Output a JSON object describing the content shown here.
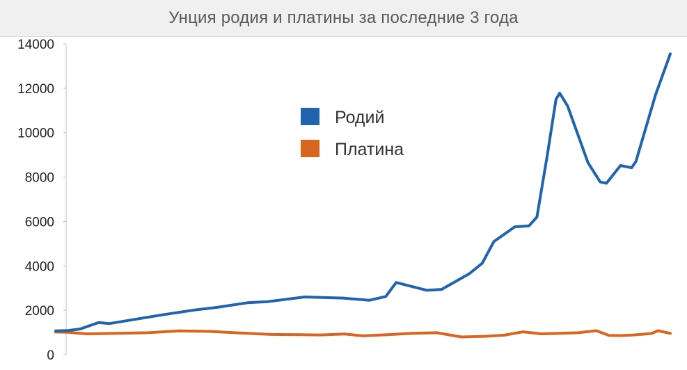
{
  "chart_data": {
    "type": "line",
    "title": "Унция родия и платины за последние 3 года",
    "xlabel": "",
    "ylabel": "",
    "ylim": [
      0,
      14000
    ],
    "yticks": [
      0,
      2000,
      4000,
      6000,
      8000,
      10000,
      12000,
      14000
    ],
    "grid": false,
    "legend_position": "center",
    "x": [
      0,
      1,
      2,
      3,
      4,
      5,
      6,
      7,
      8,
      9,
      10,
      11,
      12,
      13,
      14,
      15,
      16,
      17,
      18,
      19,
      20,
      21,
      22,
      23,
      24,
      25,
      26,
      27,
      28,
      29,
      30,
      31,
      32,
      33,
      34,
      35,
      36,
      37,
      38,
      39,
      40,
      41,
      42,
      43,
      44,
      45,
      46,
      47,
      48,
      49,
      50,
      51,
      52,
      53,
      54,
      55,
      56,
      57,
      58,
      59,
      60,
      61,
      62,
      63,
      64,
      65,
      66,
      67,
      68,
      69,
      70,
      71,
      72,
      73,
      74,
      75,
      76,
      77,
      78,
      79,
      80,
      81,
      82,
      83,
      84,
      85,
      86,
      87,
      88,
      89,
      90,
      91,
      92,
      93,
      94,
      95,
      96,
      97,
      98,
      99,
      100,
      101,
      102,
      103,
      104,
      105,
      106,
      107,
      108,
      109,
      110,
      111,
      112,
      113,
      114,
      115,
      116,
      117,
      118,
      119,
      120,
      121,
      122,
      123,
      124,
      125,
      126,
      127,
      128,
      129,
      130,
      131,
      132,
      133,
      134,
      135,
      136,
      137,
      138,
      139,
      140,
      141,
      142,
      143,
      144,
      145,
      146,
      147,
      148,
      149,
      150,
      151,
      152,
      153,
      154,
      155,
      156,
      157,
      158,
      159,
      160,
      161,
      162,
      163,
      164,
      165,
      166,
      167,
      168,
      169,
      170,
      171,
      172,
      173,
      174,
      175,
      176,
      177,
      178,
      179,
      180,
      181,
      182,
      183,
      184,
      185,
      186,
      187,
      188,
      189,
      190,
      191,
      192,
      193,
      194,
      195,
      196,
      197,
      198,
      199,
      200,
      201,
      202,
      203,
      204,
      205,
      206,
      207,
      208,
      209,
      210,
      211,
      212,
      213,
      214,
      215,
      216,
      217,
      218,
      219,
      220,
      221,
      222,
      223,
      224,
      225,
      226,
      227,
      228,
      229,
      230,
      231,
      232,
      233,
      234,
      235,
      236,
      237,
      238,
      239,
      240,
      241,
      242,
      243,
      244,
      245,
      246,
      247,
      248,
      249,
      250,
      251,
      252,
      253,
      254,
      255,
      256,
      257,
      258,
      259,
      260,
      261,
      262,
      263,
      264,
      265,
      266,
      267,
      268,
      269,
      270,
      271,
      272,
      273,
      274,
      275,
      276,
      277,
      278,
      279,
      280,
      281,
      282,
      283,
      284,
      285,
      286,
      287,
      288,
      289,
      290,
      291,
      292,
      293,
      294,
      295,
      296,
      297,
      298,
      299,
      300,
      301,
      302,
      303,
      304,
      305,
      306,
      307,
      308,
      309,
      310,
      311,
      312,
      313,
      314,
      315,
      316,
      317,
      318,
      319,
      320,
      321,
      322,
      323,
      324,
      325,
      326,
      327,
      328,
      329,
      330,
      331,
      332,
      333,
      334,
      335,
      336,
      337,
      338,
      339,
      340,
      341,
      342,
      343,
      344,
      345,
      346,
      347,
      348,
      349,
      350,
      351,
      352,
      353,
      354,
      355,
      356,
      357,
      358,
      359,
      360,
      361,
      362,
      363,
      364,
      365,
      366,
      367,
      368,
      369,
      370,
      371,
      372,
      373,
      374,
      375,
      376,
      377,
      378,
      379,
      380,
      381,
      382,
      383,
      384,
      385,
      386,
      387,
      388,
      389,
      390,
      391,
      392,
      393,
      394,
      395,
      396,
      397,
      398,
      399,
      400,
      401,
      402,
      403,
      404,
      405,
      406,
      407,
      408,
      409,
      410,
      411,
      412,
      413,
      414,
      415,
      416,
      417,
      418,
      419,
      420,
      421,
      422,
      423,
      424,
      425,
      426,
      427,
      428,
      429,
      430,
      431,
      432,
      433,
      434,
      435,
      436,
      437,
      438,
      439,
      440,
      441,
      442,
      443,
      444,
      445,
      446,
      447,
      448,
      449,
      450,
      451,
      452,
      453,
      454,
      455,
      456,
      457,
      458,
      459,
      460,
      461,
      462,
      463,
      464,
      465,
      466,
      467,
      468,
      469,
      470,
      471,
      472,
      473,
      474,
      475,
      476,
      477,
      478,
      479,
      480,
      481,
      482,
      483,
      484,
      485,
      486,
      487,
      488,
      489,
      490,
      491,
      492,
      493,
      494,
      495,
      496,
      497,
      498,
      499,
      500,
      501,
      502,
      503,
      504,
      505,
      506,
      507,
      508,
      509,
      510,
      511,
      512,
      513,
      514,
      515,
      516,
      517,
      518,
      519,
      520,
      521,
      522,
      523,
      524,
      525,
      526,
      527,
      528,
      529,
      530,
      531,
      532,
      533,
      534,
      535,
      536,
      537,
      538,
      539,
      540,
      541,
      542,
      543,
      544,
      545,
      546,
      547,
      548,
      549,
      550,
      551,
      552,
      553,
      554,
      555,
      556,
      557,
      558,
      559,
      560,
      561,
      562,
      563,
      564,
      565,
      566,
      567,
      568,
      569,
      570,
      571,
      572,
      573,
      574,
      575,
      576,
      577,
      578,
      579,
      580,
      581,
      582,
      583,
      584,
      585,
      586,
      587,
      588,
      589,
      590,
      591,
      592,
      593,
      594,
      595,
      596,
      597,
      598,
      599,
      600,
      601,
      602,
      603,
      604,
      605,
      606,
      607,
      608,
      609,
      610,
      611,
      612,
      613,
      614,
      615,
      616,
      617,
      618,
      619,
      620,
      621,
      622,
      623,
      624,
      625,
      626,
      627,
      628,
      629,
      630,
      631,
      632,
      633,
      634,
      635,
      636,
      637,
      638,
      639,
      640,
      641,
      642,
      643,
      644,
      645,
      646,
      647,
      648,
      649,
      650,
      651,
      652,
      653,
      654,
      655,
      656,
      657,
      658,
      659,
      660,
      661,
      662,
      663,
      664,
      665,
      666,
      667,
      668,
      669,
      670,
      671,
      672,
      673,
      674,
      675,
      676,
      677,
      678,
      679,
      680,
      681,
      682,
      683,
      684,
      685,
      686,
      687,
      688,
      689,
      690,
      691,
      692,
      693,
      694,
      695,
      696,
      697,
      698,
      699,
      700,
      701,
      702,
      703,
      704,
      705,
      706,
      707,
      708,
      709,
      710,
      711,
      712,
      713,
      714,
      715,
      716,
      717,
      718,
      719,
      720,
      721,
      722,
      723,
      724,
      725,
      726,
      727,
      728,
      729,
      730,
      731,
      732,
      733,
      734,
      735,
      736,
      737,
      738,
      739,
      740,
      741,
      742,
      743,
      744,
      745,
      746,
      747,
      748,
      749,
      750,
      751,
      752,
      753,
      754,
      755,
      756,
      757,
      758,
      759,
      760,
      761,
      762,
      763,
      764,
      765,
      766,
      767,
      768,
      769,
      770,
      771,
      772,
      773,
      774,
      775,
      776,
      777,
      778,
      779,
      780,
      781,
      782,
      783,
      784,
      785,
      786,
      787,
      788,
      789,
      790,
      791,
      792,
      793,
      794,
      795,
      796,
      797,
      798,
      799,
      800,
      801,
      802,
      803,
      804,
      805,
      806,
      807,
      808,
      809,
      810,
      811,
      812,
      813,
      814,
      815,
      816,
      817,
      818,
      819,
      820,
      821,
      822,
      823,
      824,
      825,
      826,
      827,
      828,
      829,
      830,
      831,
      832,
      833,
      834,
      835,
      836,
      837,
      838,
      839,
      840,
      841,
      842,
      843,
      844,
      845,
      846,
      847,
      848,
      849,
      850,
      851,
      852,
      853,
      854,
      855,
      856,
      857,
      858,
      859,
      860,
      861,
      862,
      863,
      864,
      865,
      866,
      867,
      868,
      869,
      870,
      871,
      872,
      873,
      874,
      875,
      876,
      877,
      878,
      879,
      880,
      881,
      882,
      883,
      884,
      885,
      886,
      887,
      888,
      889,
      890,
      891,
      892,
      893,
      894,
      895,
      896,
      897,
      898,
      899,
      900,
      901,
      902,
      903,
      904,
      905,
      906,
      907,
      908,
      909,
      910,
      911,
      912,
      913,
      914,
      915,
      916,
      917,
      918,
      919,
      920,
      921,
      922,
      923,
      924,
      925,
      926,
      927,
      928,
      929,
      930,
      931,
      932,
      933,
      934,
      935,
      936,
      937,
      938,
      939,
      940,
      941,
      942,
      943,
      944,
      945,
      946,
      947,
      948,
      949,
      950,
      951,
      952,
      953,
      954,
      955,
      956,
      957,
      958,
      959,
      960,
      961,
      962,
      963,
      964,
      965,
      966,
      967,
      968,
      969,
      970,
      971,
      972,
      973,
      974,
      975,
      976,
      977,
      978,
      979,
      980,
      981,
      982,
      983,
      984,
      985,
      986,
      987,
      988,
      989,
      990,
      991,
      992,
      993,
      994,
      995,
      996,
      997,
      998,
      999
    ],
    "series": []
  }
}
